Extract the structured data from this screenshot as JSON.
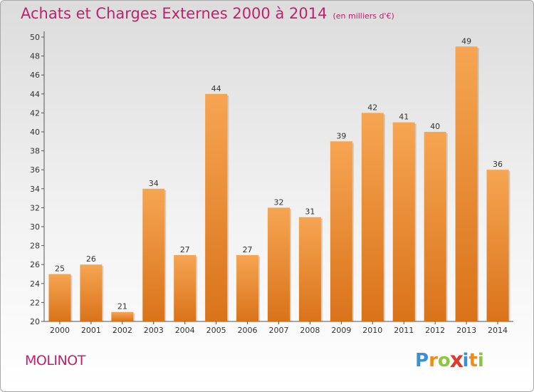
{
  "header": {
    "title": "Achats et Charges Externes 2000 à 2014",
    "subtitle": "(en milliers d'€)"
  },
  "footer": {
    "commune": "MOLINOT",
    "logo_letters": [
      "P",
      "r",
      "o",
      "x",
      "i",
      "t",
      "i"
    ],
    "logo_colors": [
      "#3a8fd6",
      "#f08c1e",
      "#8cc63f",
      "#e2382c",
      "#3a8fd6",
      "#f08c1e",
      "#8cc63f"
    ]
  },
  "colors": {
    "bar_light": "#f6a552",
    "bar_dark": "#d9731a",
    "text": "#333333",
    "accent": "#c0226a"
  },
  "chart_data": {
    "type": "bar",
    "categories": [
      "2000",
      "2001",
      "2002",
      "2003",
      "2004",
      "2005",
      "2006",
      "2007",
      "2008",
      "2009",
      "2010",
      "2011",
      "2012",
      "2013",
      "2014"
    ],
    "values": [
      25,
      26,
      21,
      34,
      27,
      44,
      27,
      32,
      31,
      39,
      42,
      41,
      40,
      49,
      36
    ],
    "ylim": [
      20,
      50
    ],
    "yticks": [
      20,
      22,
      24,
      26,
      28,
      30,
      32,
      34,
      36,
      38,
      40,
      42,
      44,
      46,
      48,
      50
    ],
    "grid": false,
    "legend": "none"
  }
}
